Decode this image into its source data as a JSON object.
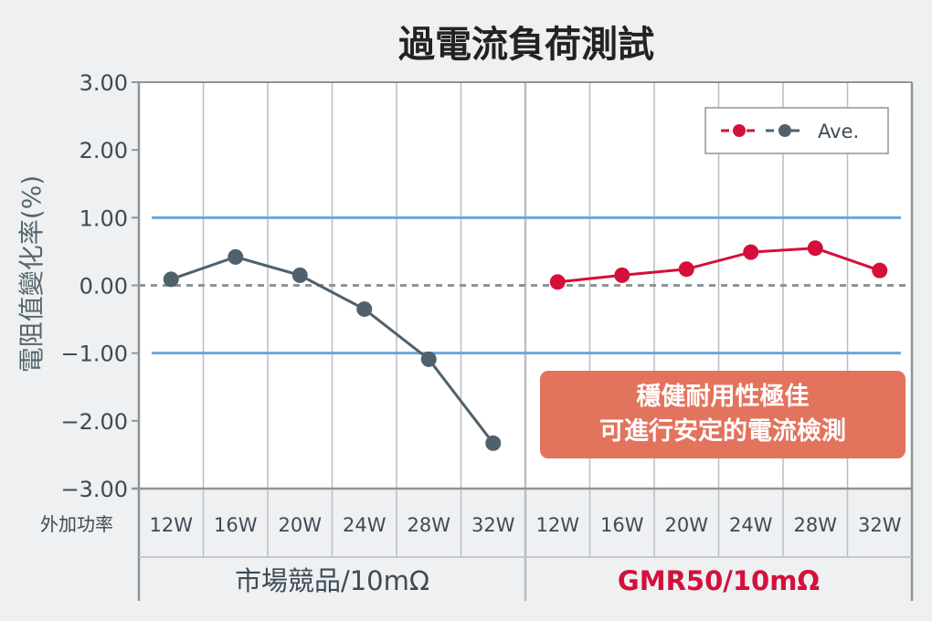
{
  "chart_data": {
    "type": "line",
    "title": "過電流負荷測試",
    "ylabel": "電阻值變化率(%)",
    "xlabel": "外加功率",
    "ylim": [
      -3.0,
      3.0
    ],
    "yticks": [
      "3.00",
      "2.00",
      "1.00",
      "0.00",
      "−1.00",
      "−2.00",
      "−3.00"
    ],
    "ytick_values": [
      3,
      2,
      1,
      0,
      -1,
      -2,
      -3
    ],
    "reference_lines": [
      {
        "value": 1.0,
        "color": "#6ea6d6"
      },
      {
        "value": -1.0,
        "color": "#6ea6d6"
      },
      {
        "value": 0.0,
        "color": "#8f9497",
        "style": "dashed"
      }
    ],
    "groups": [
      {
        "label": "市場競品/10mΩ",
        "label_color": "#3e4a55",
        "categories": [
          "12W",
          "16W",
          "20W",
          "24W",
          "28W",
          "32W"
        ],
        "series": [
          {
            "name": "Ave.",
            "values": [
              0.09,
              0.42,
              0.15,
              -0.35,
              -1.09,
              -2.33
            ],
            "color": "#4f616c"
          }
        ]
      },
      {
        "label": "GMR50/10mΩ",
        "label_color": "#d4103a",
        "categories": [
          "12W",
          "16W",
          "20W",
          "24W",
          "28W",
          "32W"
        ],
        "series": [
          {
            "name": "Ave.",
            "values": [
              0.05,
              0.15,
              0.24,
              0.49,
              0.55,
              0.22
            ],
            "color": "#d4103a"
          }
        ]
      }
    ],
    "legend": {
      "label": "Ave.",
      "position": "top-right"
    },
    "annotation": {
      "lines": [
        "穩健耐用性極佳",
        "可進行安定的電流檢測"
      ],
      "background": "#e2735d"
    },
    "grid": true
  }
}
